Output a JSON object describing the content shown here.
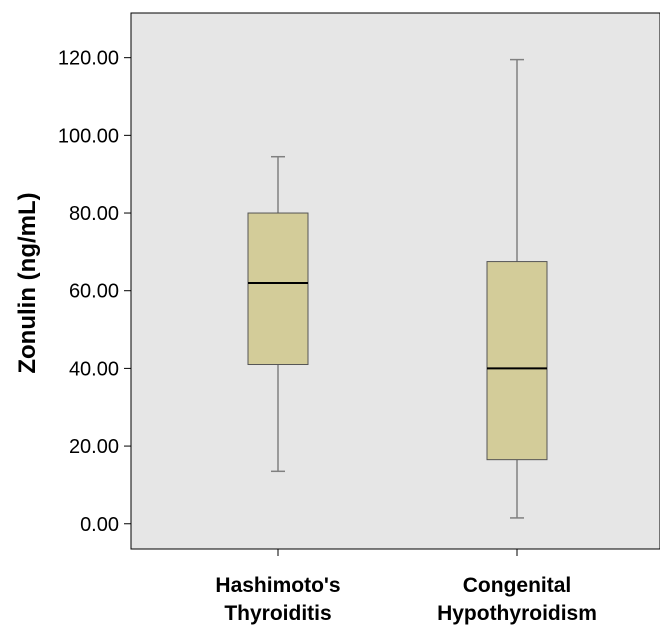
{
  "colors": {
    "plot_background": "#e6e6e6",
    "box_fill": "#d3cc99",
    "whisker": "#808080",
    "median": "#000000"
  },
  "chart_data": {
    "type": "boxplot",
    "ylabel": "Zonulin (ng/mL)",
    "ylim": [
      -6.5,
      131.5
    ],
    "yticks": [
      0,
      20,
      40,
      60,
      80,
      100,
      120
    ],
    "ytick_labels": [
      "0.00",
      "20.00",
      "40.00",
      "60.00",
      "80.00",
      "100.00",
      "120.00"
    ],
    "categories": [
      {
        "label_lines": [
          "Hashimoto's",
          "Thyroiditis"
        ],
        "min": 13.5,
        "q1": 41,
        "median": 62,
        "q3": 80,
        "max": 94.5
      },
      {
        "label_lines": [
          "Congenital",
          "Hypothyroidism"
        ],
        "min": 1.5,
        "q1": 16.5,
        "median": 40,
        "q3": 67.5,
        "max": 119.5
      }
    ],
    "grid": false
  }
}
